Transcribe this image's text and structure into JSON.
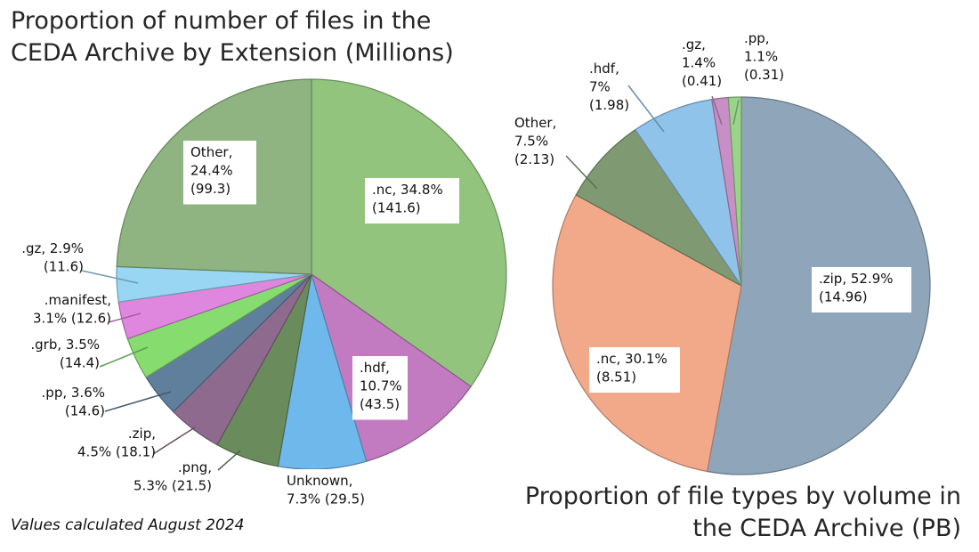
{
  "titles": {
    "files": "Proportion of number of files in the CEDA Archive by Extension (Millions)",
    "volume": "Proportion of file types by volume in the CEDA Archive (PB)"
  },
  "footnote": "Values calculated August 2024",
  "chart_data": [
    {
      "type": "pie",
      "title": "Proportion of number of files in the CEDA Archive by Extension (Millions)",
      "unit": "Millions",
      "start": "12 o'clock, clockwise",
      "slices": [
        {
          "label": ".nc",
          "percent": 34.8,
          "value": 141.6,
          "color": "#93c47d",
          "lines": [
            ".nc, 34.8%",
            "(141.6)"
          ]
        },
        {
          "label": ".hdf",
          "percent": 10.7,
          "value": 43.5,
          "color": "#c27bc0",
          "lines": [
            ".hdf,",
            "10.7%",
            "(43.5)"
          ]
        },
        {
          "label": "Unknown",
          "percent": 7.3,
          "value": 29.5,
          "color": "#6fb8ec",
          "lines": [
            "Unknown,",
            "7.3% (29.5)"
          ]
        },
        {
          "label": ".png",
          "percent": 5.3,
          "value": 21.5,
          "color": "#6a8c5c",
          "lines": [
            ".png,",
            "5.3% (21.5)"
          ]
        },
        {
          "label": ".zip",
          "percent": 4.5,
          "value": 18.1,
          "color": "#8e6b8e",
          "lines": [
            ".zip,",
            "4.5% (18.1)"
          ]
        },
        {
          "label": ".pp",
          "percent": 3.6,
          "value": 14.6,
          "color": "#5f7f9c",
          "lines": [
            ".pp, 3.6%",
            "(14.6)"
          ]
        },
        {
          "label": ".grb",
          "percent": 3.5,
          "value": 14.4,
          "color": "#86dc6e",
          "lines": [
            ".grb, 3.5%",
            "(14.4)"
          ]
        },
        {
          "label": ".manifest",
          "percent": 3.1,
          "value": 12.6,
          "color": "#df87df",
          "lines": [
            ".manifest,",
            "3.1% (12.6)"
          ]
        },
        {
          "label": ".gz",
          "percent": 2.9,
          "value": 11.6,
          "color": "#98d6f4",
          "lines": [
            ".gz, 2.9%",
            "(11.6)"
          ]
        },
        {
          "label": "Other",
          "percent": 24.4,
          "value": 99.3,
          "color": "#8fb481",
          "lines": [
            "Other,",
            "24.4%",
            "(99.3)"
          ]
        }
      ]
    },
    {
      "type": "pie",
      "title": "Proportion of file types by volume in the CEDA Archive (PB)",
      "unit": "PB",
      "start": "12 o'clock, clockwise",
      "slices": [
        {
          "label": ".zip",
          "percent": 52.9,
          "value": 14.96,
          "color": "#8ea5ba",
          "lines": [
            ".zip, 52.9%",
            "(14.96)"
          ]
        },
        {
          "label": ".nc",
          "percent": 30.1,
          "value": 8.51,
          "color": "#f2a98a",
          "lines": [
            ".nc, 30.1%",
            "(8.51)"
          ]
        },
        {
          "label": "Other",
          "percent": 7.5,
          "value": 2.13,
          "color": "#7f9a72",
          "lines": [
            "Other,",
            "7.5%",
            "(2.13)"
          ]
        },
        {
          "label": ".hdf",
          "percent": 7,
          "value": 1.98,
          "color": "#8fc3ea",
          "lines": [
            ".hdf,",
            "7%",
            "(1.98)"
          ]
        },
        {
          "label": ".gz",
          "percent": 1.4,
          "value": 0.41,
          "color": "#c88fc6",
          "lines": [
            ".gz,",
            "1.4%",
            "(0.41)"
          ]
        },
        {
          "label": ".pp",
          "percent": 1.1,
          "value": 0.31,
          "color": "#9ad38a",
          "lines": [
            ".pp,",
            "1.1%",
            "(0.31)"
          ]
        }
      ]
    }
  ]
}
